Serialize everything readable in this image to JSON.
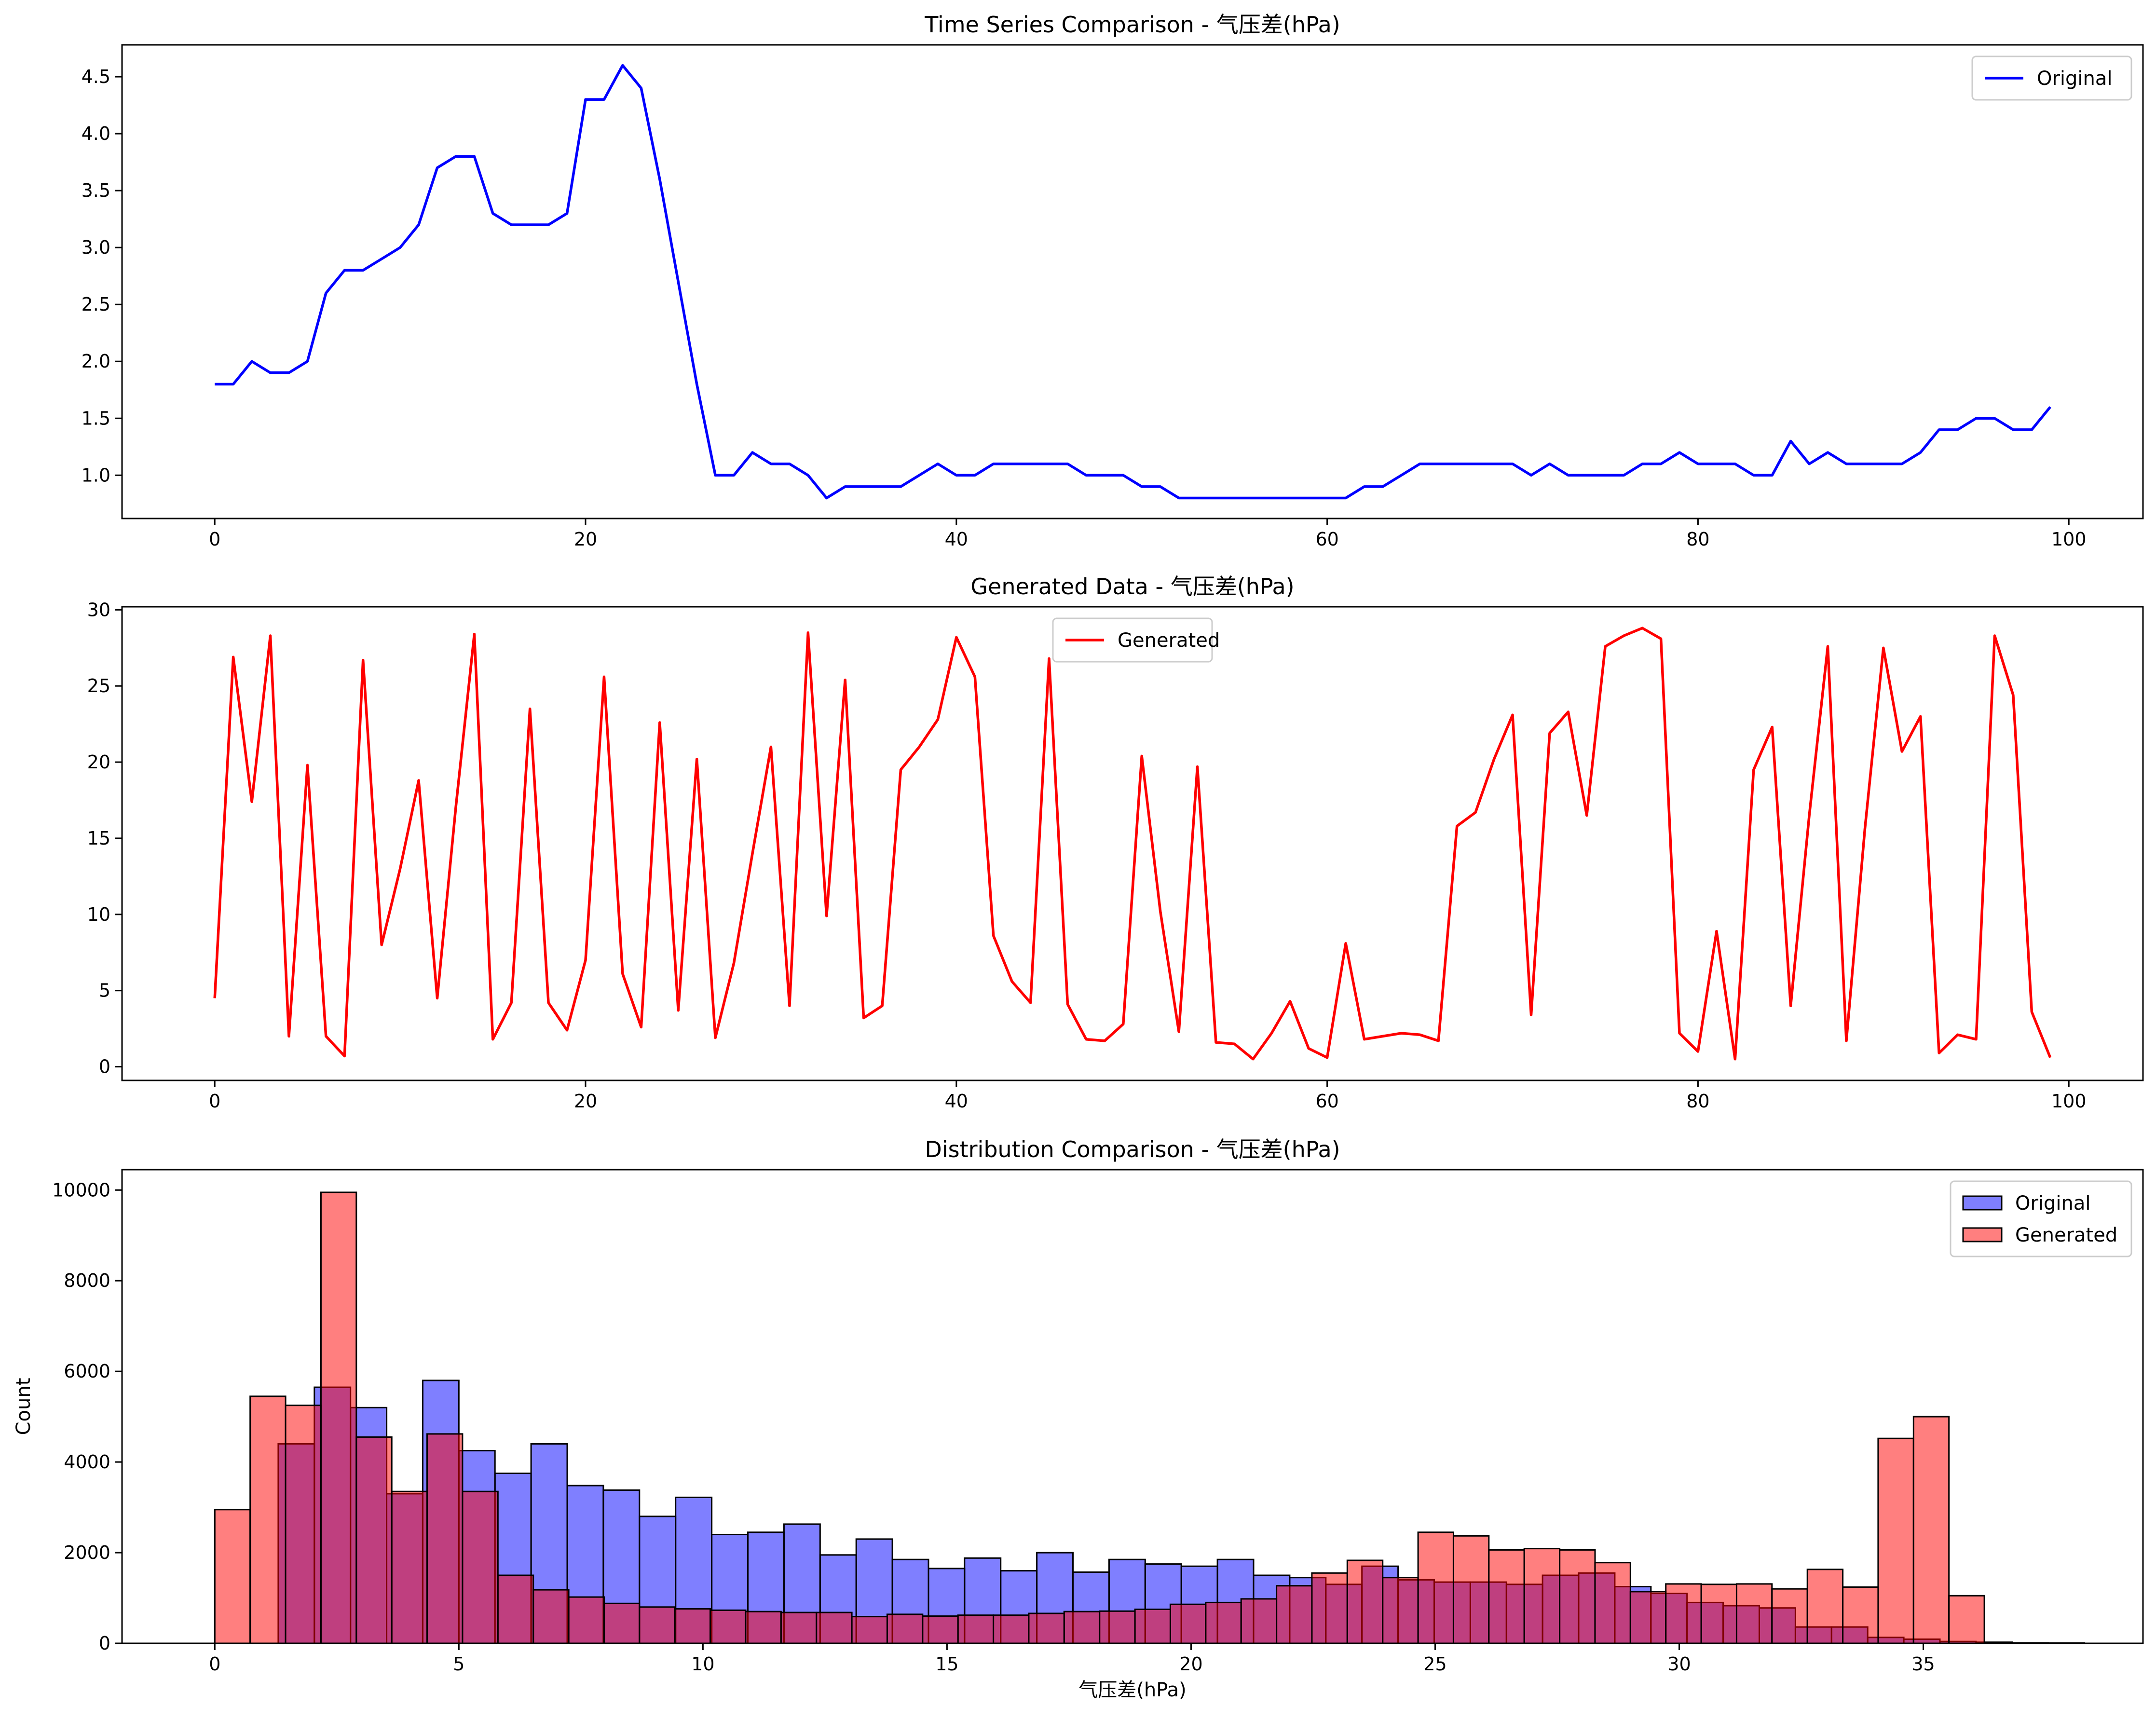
{
  "chart_data": [
    {
      "type": "line",
      "title": "Time Series Comparison - 气压差(hPa)",
      "xlabel": "",
      "ylabel": "",
      "xlim": [
        -5,
        104
      ],
      "ylim": [
        0.62,
        4.78
      ],
      "xticks": [
        0,
        20,
        40,
        60,
        80,
        100
      ],
      "yticks": [
        1.0,
        1.5,
        2.0,
        2.5,
        3.0,
        3.5,
        4.0,
        4.5
      ],
      "ytick_labels": [
        "1.0",
        "1.5",
        "2.0",
        "2.5",
        "3.0",
        "3.5",
        "4.0",
        "4.5"
      ],
      "grid": false,
      "legend": "top-right",
      "series": [
        {
          "name": "Original",
          "color": "#0000ff",
          "values": [
            1.8,
            1.8,
            2.0,
            1.9,
            1.9,
            2.0,
            2.6,
            2.8,
            2.8,
            2.9,
            3.0,
            3.2,
            3.7,
            3.8,
            3.8,
            3.3,
            3.2,
            3.2,
            3.2,
            3.3,
            4.3,
            4.3,
            4.6,
            4.4,
            3.6,
            2.7,
            1.8,
            1.0,
            1.0,
            1.2,
            1.1,
            1.1,
            1.0,
            0.8,
            0.9,
            0.9,
            0.9,
            0.9,
            1.0,
            1.1,
            1.0,
            1.0,
            1.1,
            1.1,
            1.1,
            1.1,
            1.1,
            1.0,
            1.0,
            1.0,
            0.9,
            0.9,
            0.8,
            0.8,
            0.8,
            0.8,
            0.8,
            0.8,
            0.8,
            0.8,
            0.8,
            0.8,
            0.9,
            0.9,
            1.0,
            1.1,
            1.1,
            1.1,
            1.1,
            1.1,
            1.1,
            1.0,
            1.1,
            1.0,
            1.0,
            1.0,
            1.0,
            1.1,
            1.1,
            1.2,
            1.1,
            1.1,
            1.1,
            1.0,
            1.0,
            1.3,
            1.1,
            1.2,
            1.1,
            1.1,
            1.1,
            1.1,
            1.2,
            1.4,
            1.4,
            1.5,
            1.5,
            1.4,
            1.4,
            1.6
          ]
        }
      ]
    },
    {
      "type": "line",
      "title": "Generated Data - 气压差(hPa)",
      "xlabel": "",
      "ylabel": "",
      "xlim": [
        -5,
        104
      ],
      "ylim": [
        -0.9,
        30.2
      ],
      "xticks": [
        0,
        20,
        40,
        60,
        80,
        100
      ],
      "yticks": [
        0,
        5,
        10,
        15,
        20,
        25,
        30
      ],
      "ytick_labels": [
        "0",
        "5",
        "10",
        "15",
        "20",
        "25",
        "30"
      ],
      "grid": false,
      "legend": "top-center",
      "series": [
        {
          "name": "Generated",
          "color": "#ff0000",
          "values": [
            4.5,
            26.9,
            17.4,
            28.3,
            2.0,
            19.8,
            2.0,
            0.7,
            26.7,
            8.0,
            13.0,
            18.8,
            4.5,
            17.0,
            28.4,
            1.8,
            4.2,
            23.5,
            4.2,
            2.4,
            7.0,
            25.6,
            6.1,
            2.6,
            22.6,
            3.7,
            20.2,
            1.9,
            6.8,
            14.0,
            21.0,
            4.0,
            28.5,
            9.9,
            25.4,
            3.2,
            4.0,
            19.5,
            21.0,
            22.8,
            28.2,
            25.6,
            8.6,
            5.6,
            4.2,
            26.8,
            4.1,
            1.8,
            1.7,
            2.8,
            20.4,
            10.2,
            2.3,
            19.7,
            1.6,
            1.5,
            0.5,
            2.2,
            4.3,
            1.2,
            0.6,
            8.1,
            1.8,
            2.0,
            2.2,
            2.1,
            1.7,
            15.8,
            16.7,
            20.2,
            23.1,
            3.4,
            21.9,
            23.3,
            16.5,
            27.6,
            28.3,
            28.8,
            28.1,
            2.2,
            1.0,
            8.9,
            0.5,
            19.5,
            22.3,
            4.0,
            16.5,
            27.6,
            1.7,
            15.6,
            27.5,
            20.7,
            23.0,
            0.9,
            2.1,
            1.8,
            28.3,
            24.4,
            3.6,
            0.6
          ]
        }
      ]
    },
    {
      "type": "bar",
      "title": "Distribution Comparison - 气压差(hPa)",
      "xlabel": "气压差(hPa)",
      "ylabel": "Count",
      "xlim": [
        -1.9,
        39.5
      ],
      "ylim": [
        0,
        10450
      ],
      "xticks": [
        0,
        5,
        10,
        15,
        20,
        25,
        30,
        35
      ],
      "yticks": [
        0,
        2000,
        4000,
        6000,
        8000,
        10000
      ],
      "ytick_labels": [
        "0",
        "2000",
        "4000",
        "6000",
        "8000",
        "10000"
      ],
      "grid": false,
      "legend": "top-right",
      "series": [
        {
          "name": "Original",
          "color": "#0000ff",
          "bin_start": 1.3,
          "bin_width": 0.74,
          "values": [
            4400,
            5650,
            5200,
            3300,
            5800,
            4250,
            3750,
            4400,
            3480,
            3380,
            2800,
            3220,
            2400,
            2450,
            2630,
            1950,
            2300,
            1850,
            1650,
            1880,
            1600,
            2000,
            1570,
            1850,
            1750,
            1700,
            1850,
            1500,
            1450,
            1300,
            1700,
            1400,
            1350,
            1350,
            1300,
            1500,
            1550,
            1250,
            1100,
            900,
            830,
            780,
            360,
            360,
            130,
            90,
            40,
            25,
            10,
            5
          ]
        },
        {
          "name": "Generated",
          "color": "#ff0000",
          "bin_start": 0.0,
          "bin_width": 0.725,
          "values": [
            2950,
            5450,
            5250,
            9950,
            4550,
            3350,
            4620,
            3350,
            1500,
            1180,
            1020,
            880,
            800,
            760,
            730,
            700,
            680,
            680,
            590,
            640,
            600,
            620,
            620,
            660,
            700,
            710,
            750,
            860,
            900,
            980,
            1270,
            1550,
            1830,
            1450,
            2450,
            2370,
            2060,
            2090,
            2060,
            1780,
            1140,
            1310,
            1300,
            1310,
            1200,
            1630,
            1240,
            4520,
            5000,
            1050
          ]
        }
      ]
    }
  ]
}
